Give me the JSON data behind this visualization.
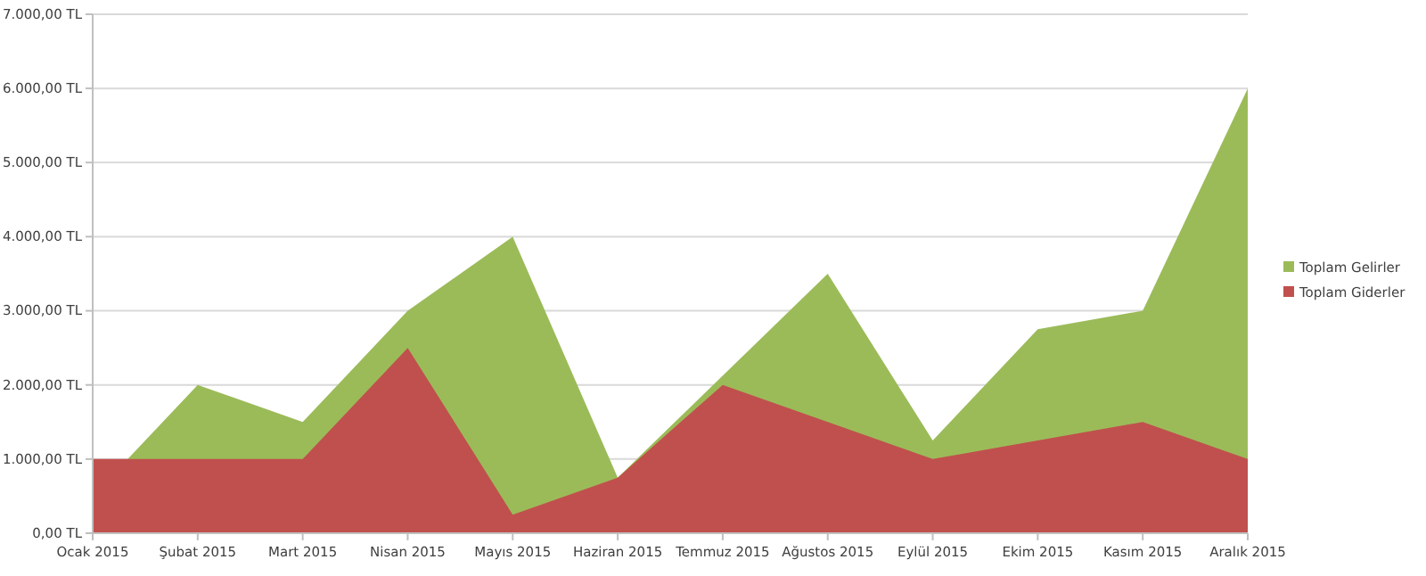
{
  "chart_data": {
    "type": "area",
    "categories": [
      "Ocak 2015",
      "Şubat 2015",
      "Mart 2015",
      "Nisan 2015",
      "Mayıs 2015",
      "Haziran 2015",
      "Temmuz 2015",
      "Ağustos 2015",
      "Eylül 2015",
      "Ekim 2015",
      "Kasım 2015",
      "Aralık 2015"
    ],
    "series": [
      {
        "name": "Toplam Gelirler",
        "color": "#9bbb59",
        "values": [
          500,
          2000,
          1500,
          3000,
          4000,
          750,
          null,
          3500,
          1250,
          2750,
          3000,
          6000
        ]
      },
      {
        "name": "Toplam Giderler",
        "color": "#c0504d",
        "values": [
          1000,
          1000,
          1000,
          2500,
          250,
          750,
          2000,
          1500,
          1000,
          1250,
          1500,
          1000
        ]
      }
    ],
    "ylim": [
      0,
      7000
    ],
    "yticks": [
      {
        "value": 0,
        "label": "0,00 TL"
      },
      {
        "value": 1000,
        "label": "1.000,00 TL"
      },
      {
        "value": 2000,
        "label": "2.000,00 TL"
      },
      {
        "value": 3000,
        "label": "3.000,00 TL"
      },
      {
        "value": 4000,
        "label": "4.000,00 TL"
      },
      {
        "value": 5000,
        "label": "5.000,00 TL"
      },
      {
        "value": 6000,
        "label": "6.000,00 TL"
      },
      {
        "value": 7000,
        "label": "7.000,00 TL"
      }
    ],
    "grid": "y",
    "legend": "right"
  }
}
